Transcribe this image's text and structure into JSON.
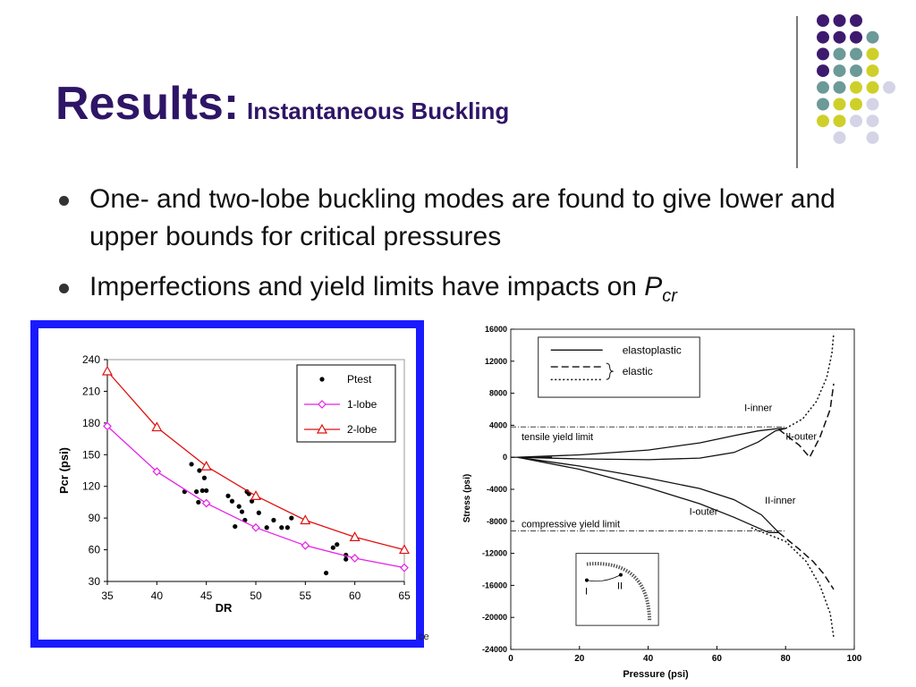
{
  "slide": {
    "title_main": "Results:",
    "title_sub": "Instantaneous Buckling",
    "bullets": [
      {
        "text": "One- and two-lobe buckling modes are found to give lower and upper bounds for critical pressures"
      },
      {
        "text": "Imperfections and yield limits have impacts on ",
        "symbol": "P",
        "subscript": "cr"
      }
    ],
    "clipped_text": "ce"
  },
  "decor": {
    "colors": {
      "purple": "#3d1a6e",
      "teal": "#6b9a98",
      "yellow": "#cfcf2a",
      "lavender": "#d4d4e6"
    },
    "dot_pattern": [
      [
        "purple",
        "purple",
        "purple",
        null
      ],
      [
        "purple",
        "purple",
        "purple",
        "teal"
      ],
      [
        "purple",
        "teal",
        "teal",
        "yellow"
      ],
      [
        "purple",
        "teal",
        "teal",
        "yellow"
      ],
      [
        "teal",
        "teal",
        "yellow",
        "yellow",
        "lavender"
      ],
      [
        "teal",
        "yellow",
        "yellow",
        "lavender"
      ],
      [
        "yellow",
        "yellow",
        "lavender",
        "lavender"
      ],
      [
        null,
        "lavender",
        null,
        "lavender"
      ]
    ]
  },
  "chart_data": [
    {
      "type": "scatter",
      "xlabel": "DR",
      "ylabel": "Pcr (psi)",
      "xlim": [
        35,
        65
      ],
      "ylim": [
        30,
        240
      ],
      "xticks": [
        35,
        40,
        45,
        50,
        55,
        60,
        65
      ],
      "yticks": [
        30,
        60,
        90,
        120,
        150,
        180,
        210,
        240
      ],
      "frame_color": "#1a1aff",
      "legend_position": "top-right",
      "series": [
        {
          "name": "Ptest",
          "kind": "points",
          "color": "#000000",
          "points": [
            [
              42.8,
              115
            ],
            [
              43.5,
              141
            ],
            [
              44,
              115
            ],
            [
              44.2,
              105
            ],
            [
              44.3,
              135
            ],
            [
              44.6,
              116
            ],
            [
              44.8,
              128
            ],
            [
              45,
              116
            ],
            [
              47.2,
              111
            ],
            [
              47.6,
              106
            ],
            [
              47.9,
              82
            ],
            [
              48.3,
              101
            ],
            [
              48.6,
              96
            ],
            [
              48.9,
              88
            ],
            [
              49.1,
              115
            ],
            [
              49.3,
              113
            ],
            [
              49.6,
              106
            ],
            [
              50.3,
              95
            ],
            [
              51.1,
              81
            ],
            [
              51.8,
              88
            ],
            [
              52.6,
              81
            ],
            [
              53.2,
              81
            ],
            [
              53.6,
              90
            ],
            [
              57.1,
              38
            ],
            [
              57.8,
              62
            ],
            [
              58.2,
              65
            ],
            [
              59.1,
              51
            ],
            [
              59.1,
              55
            ]
          ]
        },
        {
          "name": "1-lobe",
          "kind": "line",
          "marker": "diamond",
          "color": "#e620e6",
          "points": [
            [
              35,
              177
            ],
            [
              40,
              134
            ],
            [
              45,
              104
            ],
            [
              50,
              81
            ],
            [
              55,
              64
            ],
            [
              60,
              52
            ],
            [
              65,
              43
            ]
          ]
        },
        {
          "name": "2-lobe",
          "kind": "line",
          "marker": "triangle",
          "color": "#e01010",
          "points": [
            [
              35,
              229
            ],
            [
              40,
              176
            ],
            [
              45,
              139
            ],
            [
              50,
              111
            ],
            [
              55,
              88
            ],
            [
              60,
              72
            ],
            [
              65,
              60
            ]
          ]
        }
      ]
    },
    {
      "type": "line",
      "xlabel": "Pressure (psi)",
      "ylabel": "Stress (psi)",
      "xlim": [
        0,
        100
      ],
      "ylim": [
        -24000,
        16000
      ],
      "xticks": [
        0,
        20,
        40,
        60,
        80,
        100
      ],
      "yticks": [
        16000,
        12000,
        8000,
        4000,
        0,
        -4000,
        -8000,
        -12000,
        -16000,
        -20000,
        -24000
      ],
      "legend": {
        "entries": [
          {
            "style": "solid",
            "label": "elastoplastic"
          },
          {
            "style": "dashed",
            "label": "elastic"
          },
          {
            "style": "dotted",
            "label": ""
          }
        ]
      },
      "yield_limits": [
        {
          "label": "tensile yield limit",
          "y": 3800
        },
        {
          "label": "compressive yield limit",
          "y": -9200
        }
      ],
      "annotations": [
        {
          "text": "I-inner",
          "x": 68,
          "y": 5800
        },
        {
          "text": "II-outer",
          "x": 80,
          "y": 2200
        },
        {
          "text": "II-inner",
          "x": 74,
          "y": -5800
        },
        {
          "text": "I-outer",
          "x": 52,
          "y": -7200
        }
      ],
      "inset_labels": [
        "I",
        "II"
      ],
      "series": [
        {
          "name": "I-inner",
          "style": "solid",
          "points": [
            [
              2,
              0
            ],
            [
              20,
              300
            ],
            [
              40,
              900
            ],
            [
              55,
              1800
            ],
            [
              65,
              2700
            ],
            [
              72,
              3300
            ],
            [
              78,
              3600
            ],
            [
              80,
              3600
            ]
          ]
        },
        {
          "name": "II-outer",
          "style": "solid",
          "points": [
            [
              2,
              0
            ],
            [
              20,
              -200
            ],
            [
              40,
              -300
            ],
            [
              55,
              -100
            ],
            [
              65,
              600
            ],
            [
              72,
              1900
            ],
            [
              77,
              3300
            ],
            [
              80,
              3600
            ]
          ]
        },
        {
          "name": "I-outer",
          "style": "solid",
          "points": [
            [
              2,
              0
            ],
            [
              20,
              -1500
            ],
            [
              40,
              -3800
            ],
            [
              55,
              -5800
            ],
            [
              65,
              -7500
            ],
            [
              73,
              -9000
            ],
            [
              75,
              -9400
            ]
          ]
        },
        {
          "name": "II-inner",
          "style": "solid",
          "points": [
            [
              2,
              0
            ],
            [
              20,
              -1100
            ],
            [
              40,
              -2600
            ],
            [
              55,
              -3900
            ],
            [
              65,
              -5300
            ],
            [
              73,
              -7200
            ],
            [
              78,
              -9400
            ],
            [
              75,
              -9400
            ]
          ]
        },
        {
          "name": "elastic-upper",
          "style": "dashed",
          "points": [
            [
              78,
              3500
            ],
            [
              84,
              1500
            ],
            [
              87,
              0
            ],
            [
              90,
              2500
            ],
            [
              93,
              6000
            ],
            [
              94,
              9200
            ]
          ]
        },
        {
          "name": "elastic-lower",
          "style": "dashed",
          "points": [
            [
              78,
              -9400
            ],
            [
              84,
              -11500
            ],
            [
              88,
              -13000
            ],
            [
              91,
              -14500
            ],
            [
              94,
              -16500
            ]
          ]
        },
        {
          "name": "dotted-upper",
          "style": "dotted",
          "points": [
            [
              80,
              3600
            ],
            [
              85,
              4800
            ],
            [
              89,
              7000
            ],
            [
              92,
              10000
            ],
            [
              93.5,
              13000
            ],
            [
              94,
              15500
            ]
          ]
        },
        {
          "name": "dotted-lower",
          "style": "dotted",
          "points": [
            [
              70,
              -8800
            ],
            [
              80,
              -10500
            ],
            [
              86,
              -13000
            ],
            [
              90,
              -16000
            ],
            [
              93,
              -19500
            ],
            [
              94,
              -22500
            ]
          ]
        }
      ]
    }
  ]
}
